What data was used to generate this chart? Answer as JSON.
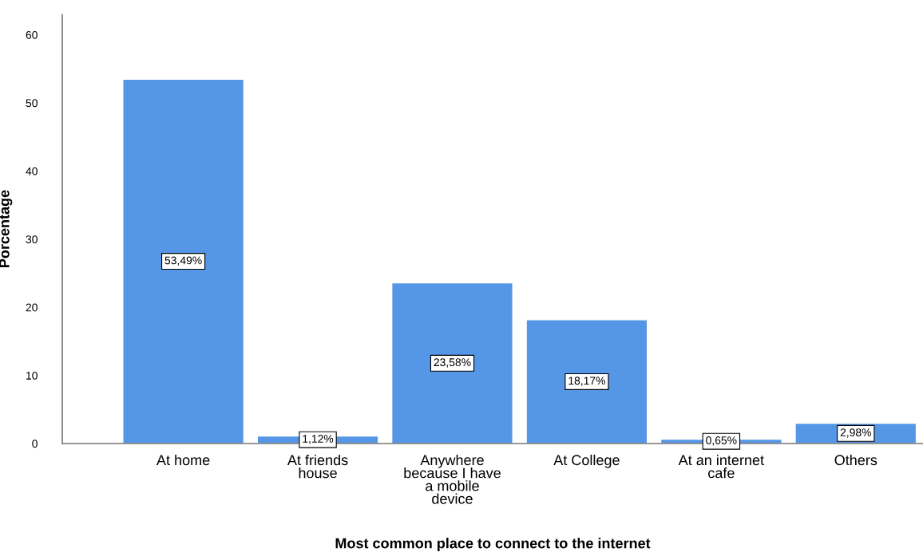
{
  "chart_data": {
    "type": "bar",
    "xlabel": "Most common place to connect to the internet",
    "ylabel": "Porcentage",
    "categories": [
      "At home",
      "At friends\nhouse",
      "Anywhere\nbecause I have\na mobile\ndevice",
      "At College",
      "At an internet\ncafe",
      "Others"
    ],
    "values": [
      53.49,
      1.12,
      23.58,
      18.17,
      0.65,
      2.98
    ],
    "value_labels": [
      "53,49%",
      "1,12%",
      "23,58%",
      "18,17%",
      "0,65%",
      "2,98%"
    ],
    "color": "#5596e6",
    "ylim": [
      0,
      63
    ],
    "yticks": [
      0,
      10,
      20,
      30,
      40,
      50,
      60
    ],
    "grid": false
  }
}
